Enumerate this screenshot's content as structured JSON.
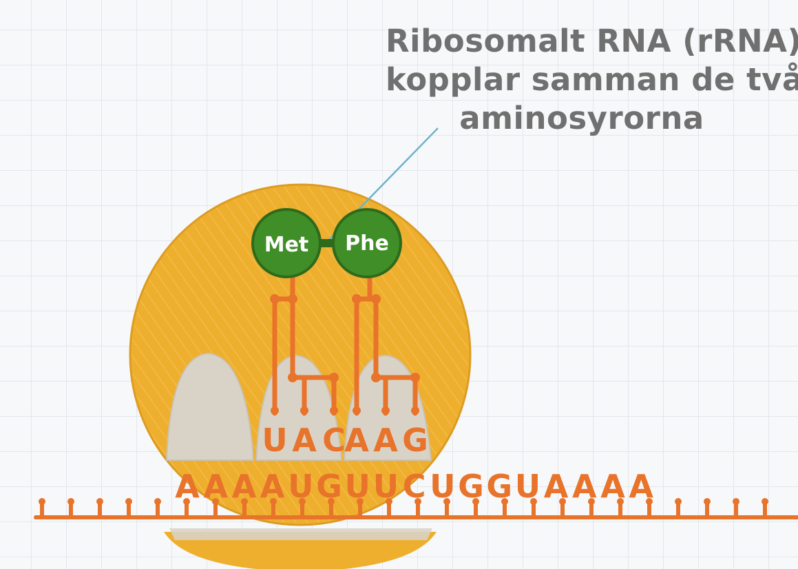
{
  "caption": {
    "line1": "Ribosomalt RNA (rRNA)",
    "line2": "kopplar samman de två",
    "line3": "aminosyrorna"
  },
  "amino_acids": {
    "left": "Met",
    "right": "Phe"
  },
  "trna_anticodons": {
    "left": [
      "U",
      "A",
      "C"
    ],
    "right": [
      "A",
      "A",
      "G"
    ]
  },
  "mrna_sequence": [
    "A",
    "A",
    "A",
    "A",
    "U",
    "G",
    "U",
    "U",
    "C",
    "U",
    "G",
    "G",
    "U",
    "A",
    "A",
    "A",
    "A"
  ],
  "colors": {
    "ribosome": "#efaf2e",
    "amino_acid": "#3f8e27",
    "rna": "#e8732a",
    "site": "#d9d3c7",
    "caption": "#707070",
    "pointer": "#6ab4c8"
  }
}
